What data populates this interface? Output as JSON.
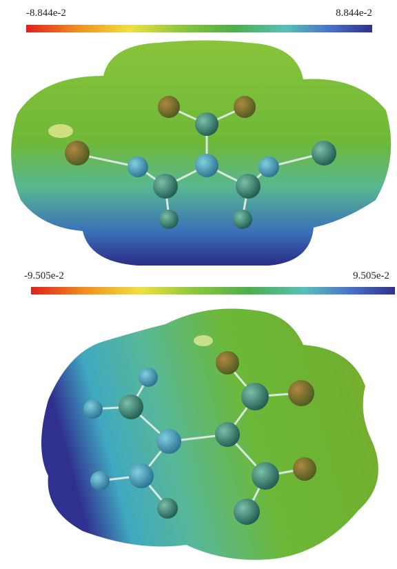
{
  "panels": [
    {
      "scale": {
        "min_label": "-8.844e-2",
        "max_label": "8.844e-2"
      }
    },
    {
      "scale": {
        "min_label": "-9.505e-2",
        "max_label": "9.505e-2"
      }
    }
  ]
}
